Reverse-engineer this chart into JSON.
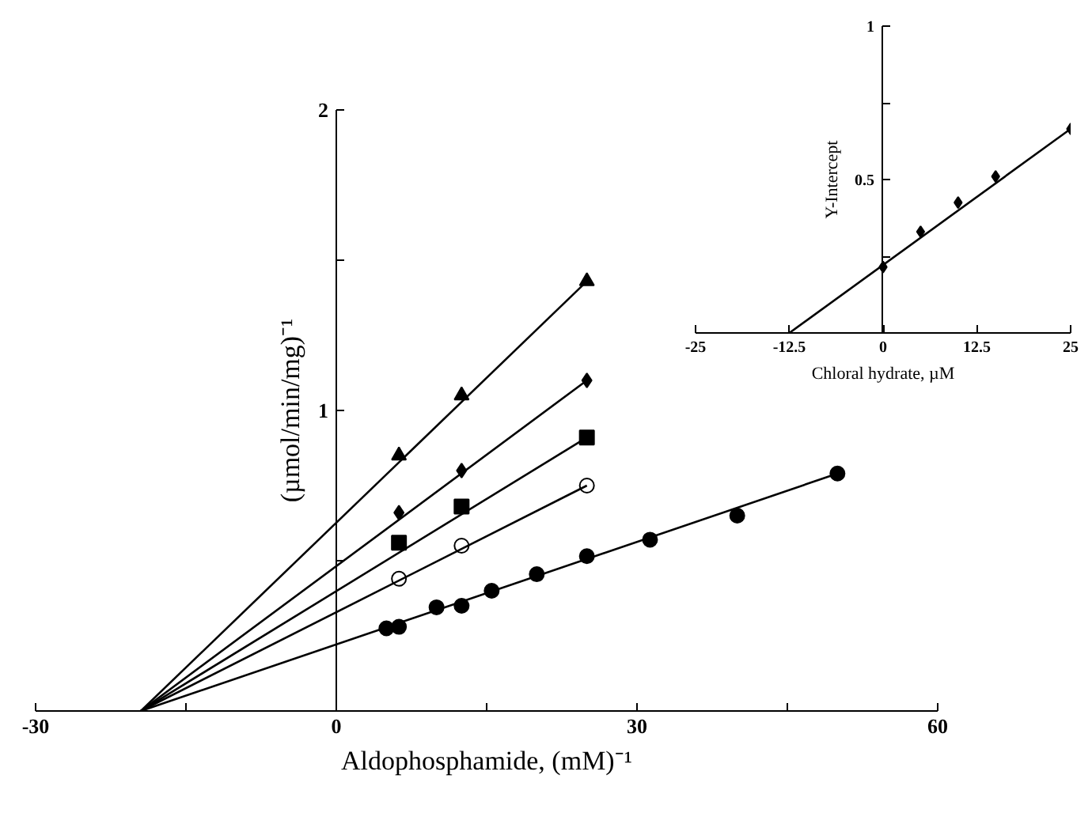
{
  "chart_data": [
    {
      "type": "scatter",
      "xlabel": "Aldophosphamide, (mM)⁻¹",
      "ylabel": "(µmol/min/mg)⁻¹",
      "xlim": [
        -30,
        60
      ],
      "ylim": [
        0,
        2
      ],
      "xticks": [
        -30,
        {
          "value": -15,
          "label": null
        },
        0,
        {
          "value": 15,
          "label": null
        },
        30,
        {
          "value": 45,
          "label": null
        },
        60
      ],
      "yticks": [
        {
          "value": 0.5,
          "label": null
        },
        1,
        {
          "value": 1.5,
          "label": null
        },
        2
      ],
      "grid": false,
      "series": [
        {
          "color": "#000000",
          "marker": "triangle",
          "x": [
            6.25,
            12.5,
            25
          ],
          "values": [
            0.85,
            1.05,
            1.43
          ]
        },
        {
          "color": "#000000",
          "marker": "diamond",
          "x": [
            6.25,
            12.5,
            25
          ],
          "values": [
            0.66,
            0.8,
            1.1
          ]
        },
        {
          "color": "#000000",
          "marker": "square",
          "x": [
            6.25,
            12.5,
            25
          ],
          "values": [
            0.56,
            0.68,
            0.91
          ]
        },
        {
          "color": "#ffffff",
          "marker": "circle",
          "x": [
            6.25,
            12.5,
            25
          ],
          "values": [
            0.44,
            0.55,
            0.75
          ]
        },
        {
          "color": "#000000",
          "marker": "circle",
          "x": [
            5,
            6.25,
            10,
            12.5,
            15.5,
            20,
            25,
            31.3,
            40,
            50
          ],
          "values": [
            0.275,
            0.28,
            0.345,
            0.35,
            0.4,
            0.455,
            0.515,
            0.57,
            0.65,
            0.79
          ]
        },
        {
          "type": "line",
          "color": "#000000",
          "x": [
            -19.5,
            25
          ],
          "values": [
            0,
            1.43
          ]
        },
        {
          "type": "line",
          "color": "#000000",
          "x": [
            -19.5,
            25
          ],
          "values": [
            0,
            1.1
          ]
        },
        {
          "type": "line",
          "color": "#000000",
          "x": [
            -19.5,
            25
          ],
          "values": [
            0,
            0.91
          ]
        },
        {
          "type": "line",
          "color": "#000000",
          "x": [
            -19.5,
            25
          ],
          "values": [
            0,
            0.75
          ]
        },
        {
          "type": "line",
          "color": "#000000",
          "x": [
            -19.5,
            50
          ],
          "values": [
            0,
            0.79
          ]
        }
      ]
    },
    {
      "type": "scatter",
      "xlabel": "Chloral hydrate, µM",
      "ylabel": "Y-Intercept",
      "xlim": [
        -25,
        25
      ],
      "ylim": [
        0,
        1
      ],
      "xticks": [
        -25,
        -12.5,
        0,
        12.5,
        25
      ],
      "yticks": [
        {
          "value": 0.25,
          "label": null
        },
        0.5,
        {
          "value": 0.75,
          "label": null
        },
        1
      ],
      "grid": false,
      "series": [
        {
          "color": "#000000",
          "marker": "diamond",
          "x": [
            0,
            5,
            10,
            15,
            25
          ],
          "values": [
            0.215,
            0.33,
            0.425,
            0.51,
            0.665
          ]
        },
        {
          "type": "line",
          "color": "#000000",
          "x": [
            -12.5,
            25
          ],
          "values": [
            0,
            0.665
          ]
        }
      ]
    }
  ]
}
